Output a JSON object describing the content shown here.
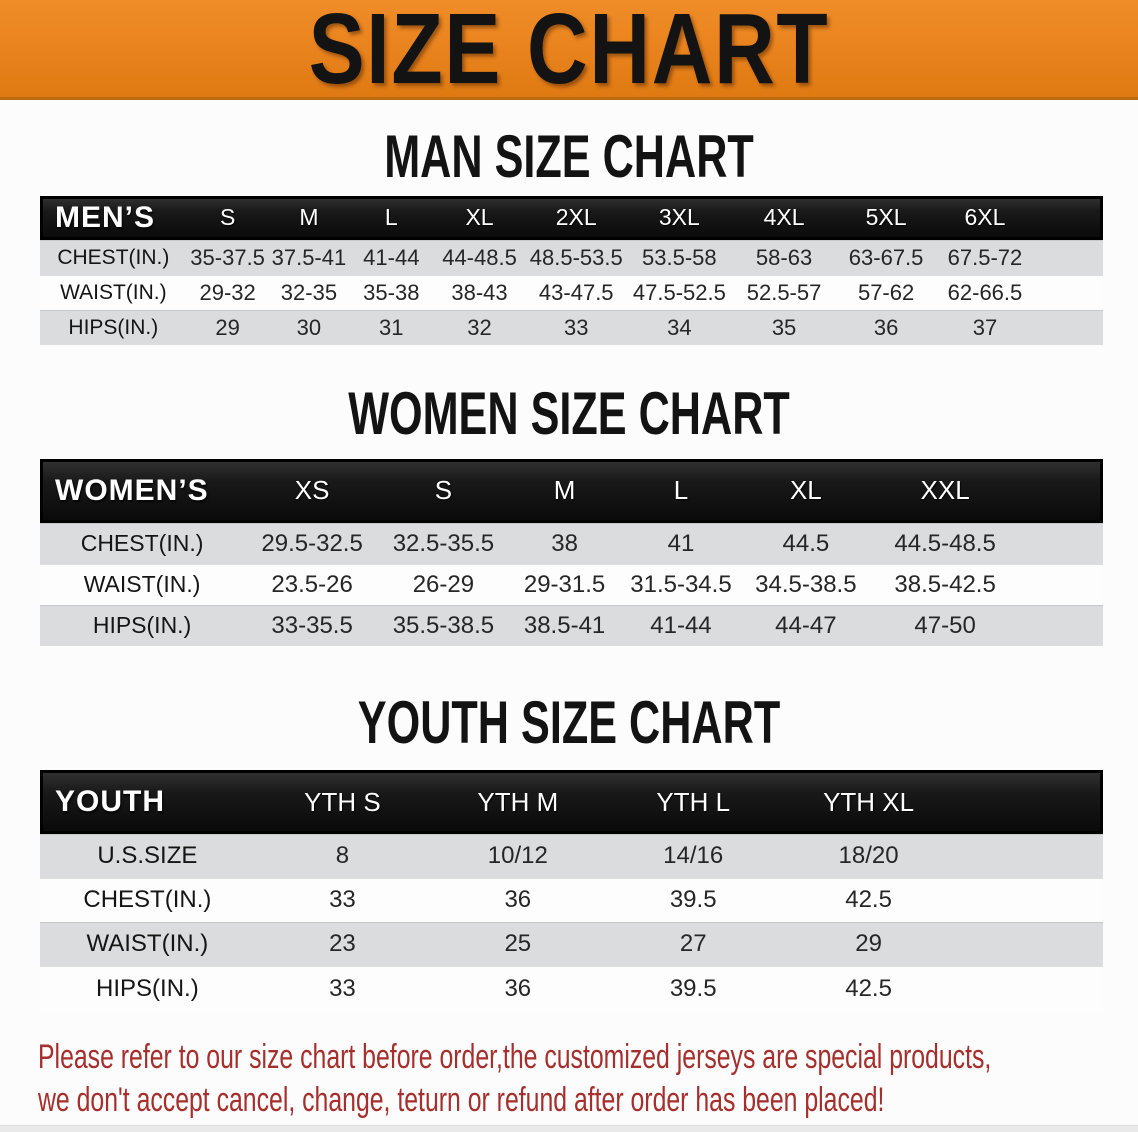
{
  "colors": {
    "page-bg": "#fcfcfc",
    "banner-orange": "#e8821c",
    "banner-border": "#ba6a10",
    "title-black": "#131313",
    "row-gray": "#dbdcdd",
    "row-white": "#fdfdfd",
    "disclaimer-red": "#a52f2d"
  },
  "banner": {
    "title": "SIZE CHART"
  },
  "sections": [
    {
      "id": "men",
      "title": "MAN SIZE CHART",
      "header": {
        "label": "MEN’S",
        "sizes": [
          "S",
          "M",
          "L",
          "XL",
          "2XL",
          "3XL",
          "4XL",
          "5XL",
          "6XL"
        ]
      },
      "rows": [
        {
          "label": "CHEST(IN.)",
          "values": [
            "35-37.5",
            "37.5-41",
            "41-44",
            "44-48.5",
            "48.5-53.5",
            "53.5-58",
            "58-63",
            "63-67.5",
            "67.5-72"
          ]
        },
        {
          "label": "WAIST(IN.)",
          "values": [
            "29-32",
            "32-35",
            "35-38",
            "38-43",
            "43-47.5",
            "47.5-52.5",
            "52.5-57",
            "57-62",
            "62-66.5"
          ]
        },
        {
          "label": "HIPS(IN.)",
          "values": [
            "29",
            "30",
            "31",
            "32",
            "33",
            "34",
            "35",
            "36",
            "37"
          ]
        }
      ]
    },
    {
      "id": "women",
      "title": "WOMEN SIZE CHART",
      "header": {
        "label": "WOMEN’S",
        "sizes": [
          "XS",
          "S",
          "M",
          "L",
          "XL",
          "XXL"
        ]
      },
      "rows": [
        {
          "label": "CHEST(IN.)",
          "values": [
            "29.5-32.5",
            "32.5-35.5",
            "38",
            "41",
            "44.5",
            "44.5-48.5"
          ]
        },
        {
          "label": "WAIST(IN.)",
          "values": [
            "23.5-26",
            "26-29",
            "29-31.5",
            "31.5-34.5",
            "34.5-38.5",
            "38.5-42.5"
          ]
        },
        {
          "label": "HIPS(IN.)",
          "values": [
            "33-35.5",
            "35.5-38.5",
            "38.5-41",
            "41-44",
            "44-47",
            "47-50"
          ]
        }
      ]
    },
    {
      "id": "youth",
      "title": "YOUTH SIZE CHART",
      "header": {
        "label": "YOUTH",
        "sizes": [
          "YTH S",
          "YTH M",
          "YTH L",
          "YTH XL"
        ]
      },
      "rows": [
        {
          "label": "U.S.SIZE",
          "values": [
            "8",
            "10/12",
            "14/16",
            "18/20"
          ]
        },
        {
          "label": "CHEST(IN.)",
          "values": [
            "33",
            "36",
            "39.5",
            "42.5"
          ]
        },
        {
          "label": "WAIST(IN.)",
          "values": [
            "23",
            "25",
            "27",
            "29"
          ]
        },
        {
          "label": "HIPS(IN.)",
          "values": [
            "33",
            "36",
            "39.5",
            "42.5"
          ]
        }
      ]
    }
  ],
  "disclaimer": {
    "line1": "Please refer to our size chart before order,the customized jerseys are special products,",
    "line2": "we don't accept cancel, change, teturn or refund after order has been placed!"
  }
}
